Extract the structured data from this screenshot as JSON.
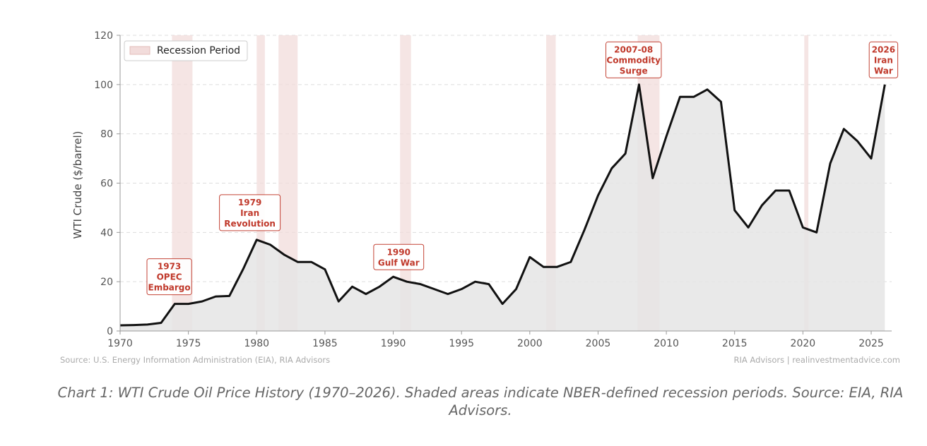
{
  "chart_data": {
    "type": "area",
    "ylabel": "WTI Crude ($/barrel)",
    "xlim": [
      1970,
      2026.5
    ],
    "ylim": [
      0,
      120
    ],
    "x_ticks": [
      1970,
      1975,
      1980,
      1985,
      1990,
      1995,
      2000,
      2005,
      2010,
      2015,
      2020,
      2025
    ],
    "y_ticks": [
      0,
      20,
      40,
      60,
      80,
      100,
      120
    ],
    "grid": "horizontal dashed",
    "legend": {
      "position": "top-left",
      "entries": [
        "Recession Period"
      ]
    },
    "colors": {
      "line": "#111111",
      "fill": "#e5e5e5",
      "recession": "#f2dcdb",
      "annotation": "#c0392b"
    },
    "series": [
      {
        "x": [
          1970,
          1971,
          1972,
          1973,
          1974,
          1975,
          1976,
          1977,
          1978,
          1979,
          1980,
          1981,
          1982,
          1983,
          1984,
          1985,
          1986,
          1987,
          1988,
          1989,
          1990,
          1991,
          1992,
          1993,
          1994,
          1995,
          1996,
          1997,
          1998,
          1999,
          2000,
          2001,
          2002,
          2003,
          2004,
          2005,
          2006,
          2007,
          2008,
          2009,
          2010,
          2011,
          2012,
          2013,
          2014,
          2015,
          2016,
          2017,
          2018,
          2019,
          2020,
          2021,
          2022,
          2023,
          2024,
          2025,
          2026
        ],
        "values": [
          2.3,
          2.4,
          2.6,
          3.3,
          11,
          11,
          12,
          14,
          14.2,
          25,
          37,
          35,
          31,
          28,
          28,
          25,
          12,
          18,
          15,
          18,
          22,
          20,
          19,
          17,
          15,
          17,
          20,
          19,
          11,
          17,
          30,
          26,
          26,
          28,
          41,
          55,
          66,
          72,
          100,
          62,
          79,
          95,
          95,
          98,
          93,
          49,
          42,
          51,
          57,
          57,
          42,
          40,
          68,
          82,
          77,
          70,
          100
        ]
      }
    ],
    "recessions": [
      [
        1973.8,
        1975.3
      ],
      [
        1980.0,
        1980.6
      ],
      [
        1981.6,
        1983.0
      ],
      [
        1990.5,
        1991.3
      ],
      [
        2001.2,
        2001.9
      ],
      [
        2007.9,
        2009.5
      ],
      [
        2020.1,
        2020.4
      ]
    ],
    "annotations": [
      {
        "lines": [
          "1973",
          "OPEC",
          "Embargo"
        ],
        "x": 1973.6,
        "y": 22
      },
      {
        "lines": [
          "1979",
          "Iran",
          "Revolution"
        ],
        "x": 1979.5,
        "y": 48
      },
      {
        "lines": [
          "1990",
          "Gulf War"
        ],
        "x": 1990.4,
        "y": 30
      },
      {
        "lines": [
          "2007-08",
          "Commodity",
          "Surge"
        ],
        "x": 2007.6,
        "y": 110
      },
      {
        "lines": [
          "2026",
          "Iran",
          "War"
        ],
        "x": 2025.9,
        "y": 110
      }
    ]
  },
  "source_left": "Source: U.S. Energy Information Administration (EIA), RIA Advisors",
  "source_right": "RIA Advisors | realinvestmentadvice.com",
  "caption": "Chart 1: WTI Crude Oil Price History (1970–2026). Shaded areas indicate NBER-defined recession periods. Source: EIA, RIA Advisors."
}
